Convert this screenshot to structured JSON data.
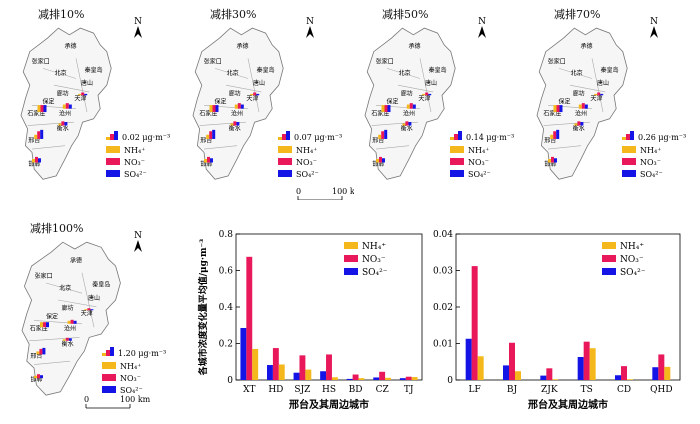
{
  "maps": [
    {
      "title": "减排10%",
      "legend_value": "0.02 μg·m⁻³"
    },
    {
      "title": "减排30%",
      "legend_value": "0.07 μg·m⁻³"
    },
    {
      "title": "减排50%",
      "legend_value": "0.14 μg·m⁻³"
    },
    {
      "title": "减排70%",
      "legend_value": "0.26 μg·m⁻³"
    },
    {
      "title": "减排100%",
      "legend_value": "1.20 μg·m⁻³"
    }
  ],
  "city_labels": [
    "承德",
    "张家口",
    "秦皇岛",
    "北京",
    "唐山",
    "廊坊",
    "天津",
    "保定",
    "石家庄",
    "沧州",
    "衡水",
    "邢台",
    "邯郸"
  ],
  "north_label": "N",
  "scale_label": "100 km",
  "scale_zero": "0",
  "legend_items": [
    "NH₄⁺",
    "NO₃⁻",
    "SO₄²⁻"
  ],
  "colors": {
    "NH4": "#f5b81c",
    "NO3": "#e8185a",
    "SO4": "#1414e6"
  },
  "chart_data": [
    {
      "type": "bar",
      "categories": [
        "XT",
        "HD",
        "SJZ",
        "HS",
        "BD",
        "CZ",
        "TJ"
      ],
      "series": [
        {
          "name": "SO₄²⁻",
          "values": [
            0.285,
            0.082,
            0.04,
            0.048,
            0.006,
            0.014,
            0.01
          ]
        },
        {
          "name": "NO₃⁻",
          "values": [
            0.675,
            0.175,
            0.135,
            0.14,
            0.03,
            0.045,
            0.018
          ]
        },
        {
          "name": "NH₄⁺",
          "values": [
            0.17,
            0.085,
            0.057,
            0.015,
            0.01,
            0.012,
            0.016
          ]
        }
      ],
      "ylim": [
        0,
        0.8
      ],
      "yticks": [
        "0",
        "0.2",
        "0.4",
        "0.6",
        "0.8"
      ],
      "xlabel": "邢台及其周边城市",
      "ylabel": "各城市浓度变化量平均值/μg·m⁻³"
    },
    {
      "type": "bar",
      "categories": [
        "LF",
        "BJ",
        "ZJK",
        "TS",
        "CD",
        "QHD"
      ],
      "series": [
        {
          "name": "SO₄²⁻",
          "values": [
            0.0113,
            0.004,
            0.0012,
            0.0063,
            0.0013,
            0.0035
          ]
        },
        {
          "name": "NO₃⁻",
          "values": [
            0.0312,
            0.0102,
            0.0032,
            0.0105,
            0.0038,
            0.007
          ]
        },
        {
          "name": "NH₄⁺",
          "values": [
            0.0065,
            0.0024,
            0.0002,
            0.0087,
            0.0002,
            0.0036
          ]
        }
      ],
      "ylim": [
        0,
        0.04
      ],
      "yticks": [
        "0",
        "0.01",
        "0.02",
        "0.03",
        "0.04"
      ],
      "xlabel": "邢台及其周边城市",
      "ylabel": ""
    }
  ]
}
